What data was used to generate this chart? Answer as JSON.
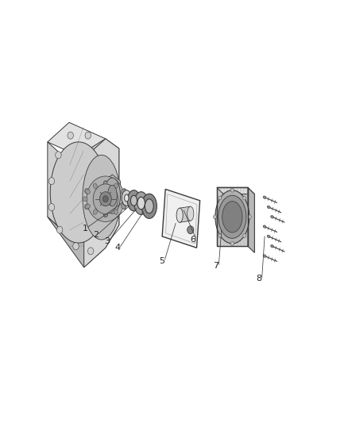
{
  "background_color": "#ffffff",
  "line_color": "#3a3a3a",
  "label_color": "#222222",
  "fig_width": 4.38,
  "fig_height": 5.33,
  "dpi": 100,
  "label_fontsize": 8,
  "leaders": {
    "1": {
      "part": [
        0.295,
        0.535
      ],
      "label": [
        0.155,
        0.455
      ]
    },
    "2": {
      "part": [
        0.32,
        0.525
      ],
      "label": [
        0.195,
        0.435
      ]
    },
    "3": {
      "part": [
        0.345,
        0.515
      ],
      "label": [
        0.235,
        0.415
      ]
    },
    "4": {
      "part": [
        0.37,
        0.505
      ],
      "label": [
        0.275,
        0.395
      ]
    },
    "5": {
      "part": [
        0.49,
        0.47
      ],
      "label": [
        0.44,
        0.355
      ]
    },
    "6": {
      "part": [
        0.52,
        0.51
      ],
      "label": [
        0.555,
        0.42
      ]
    },
    "7": {
      "part": [
        0.66,
        0.45
      ],
      "label": [
        0.64,
        0.34
      ]
    },
    "8": {
      "part": [
        0.82,
        0.43
      ],
      "label": [
        0.8,
        0.3
      ]
    }
  }
}
